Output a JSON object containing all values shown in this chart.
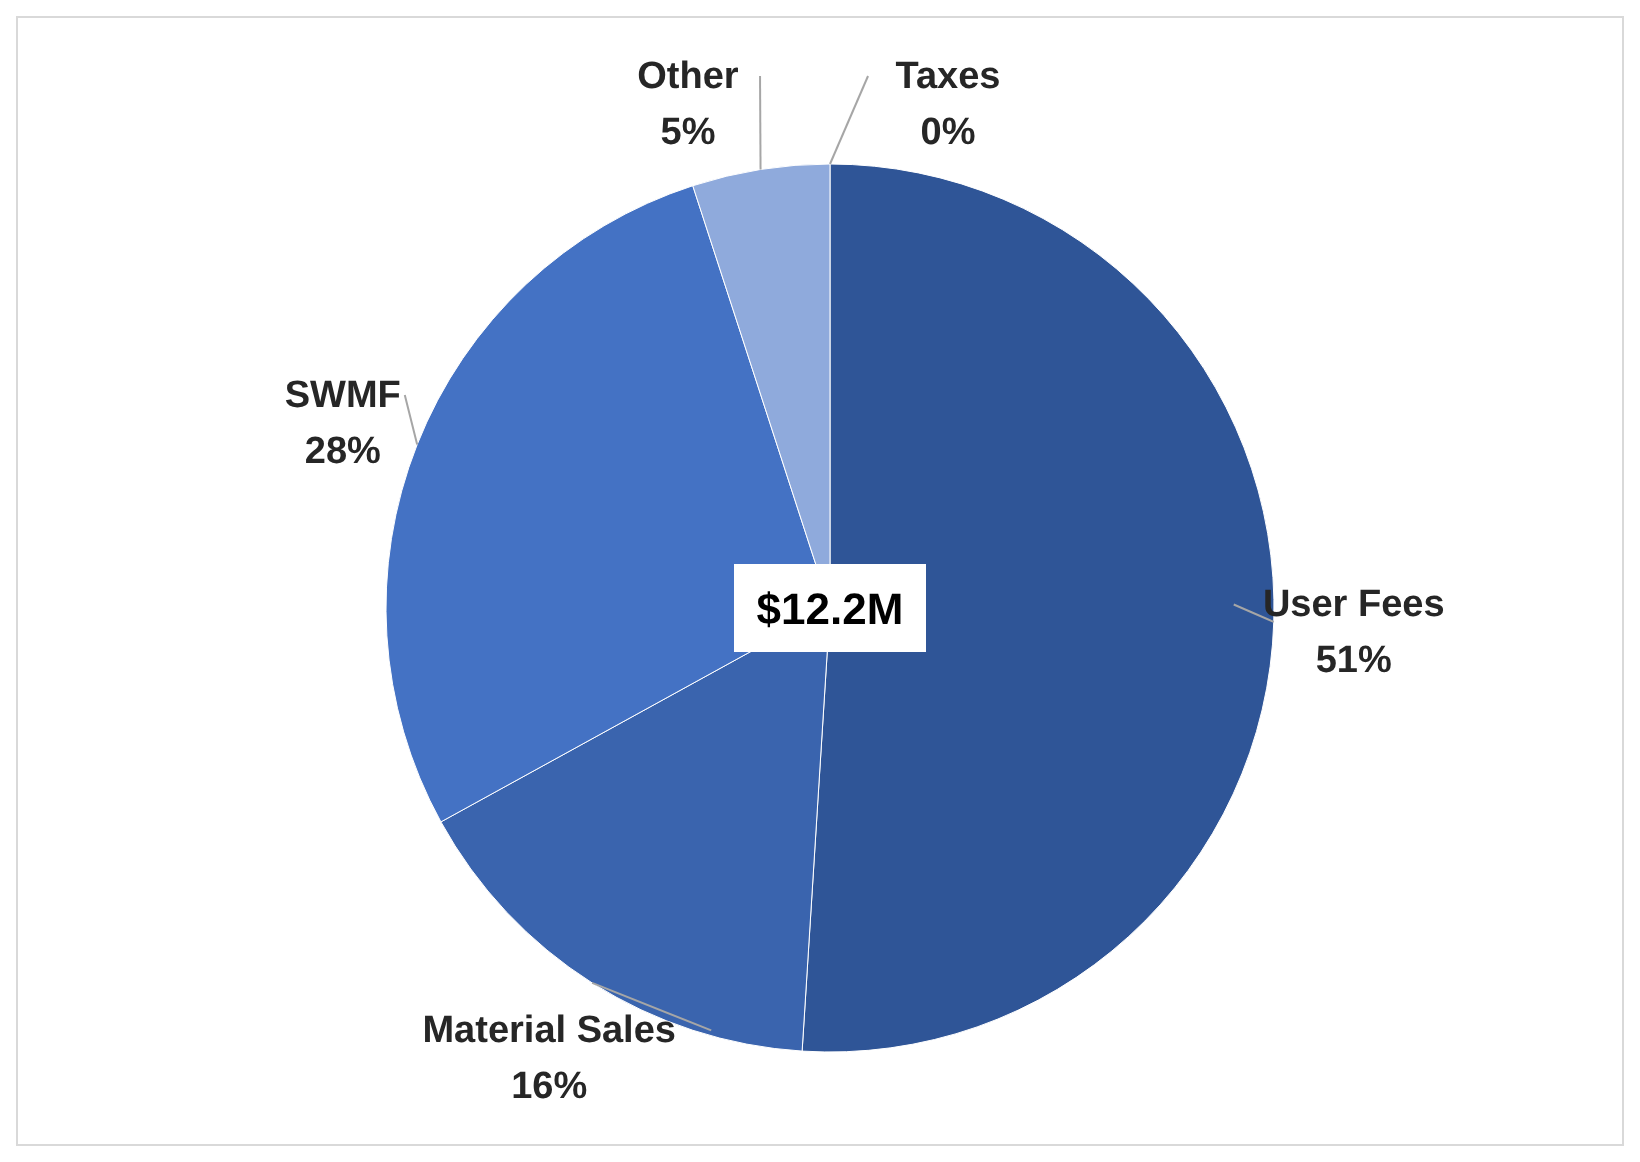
{
  "chart_data": {
    "type": "pie",
    "categories": [
      "Taxes",
      "User Fees",
      "Material Sales",
      "SWMF",
      "Other"
    ],
    "values": [
      0,
      51,
      16,
      28,
      5
    ],
    "colors": [
      "#1f3864",
      "#2f5597",
      "#3a64ae",
      "#4472c4",
      "#8faadc"
    ],
    "value_labels": [
      "0%",
      "51%",
      "16%",
      "28%",
      "5%"
    ],
    "annotations": [
      "$12.2M"
    ]
  }
}
